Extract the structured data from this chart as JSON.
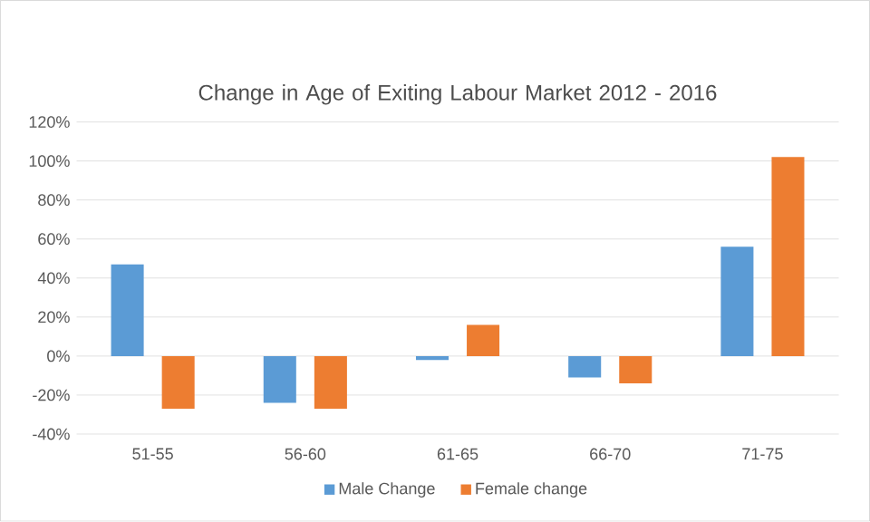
{
  "chart_data": {
    "type": "bar",
    "title": "Change in Age of Exiting Labour Market 2012 - 2016",
    "categories": [
      "51-55",
      "56-60",
      "61-65",
      "66-70",
      "71-75"
    ],
    "series": [
      {
        "name": "Male Change",
        "color": "#5b9bd5",
        "values": [
          47,
          -24,
          -2,
          -11,
          56
        ]
      },
      {
        "name": "Female change",
        "color": "#ed7d31",
        "values": [
          -27,
          -27,
          16,
          -14,
          102
        ]
      }
    ],
    "ylim": [
      -40,
      120
    ],
    "yticks": [
      {
        "value": -40,
        "label": "-40%"
      },
      {
        "value": -20,
        "label": "-20%"
      },
      {
        "value": 0,
        "label": "0%"
      },
      {
        "value": 20,
        "label": "20%"
      },
      {
        "value": 40,
        "label": "40%"
      },
      {
        "value": 60,
        "label": "60%"
      },
      {
        "value": 80,
        "label": "80%"
      },
      {
        "value": 100,
        "label": "100%"
      },
      {
        "value": 120,
        "label": "120%"
      }
    ],
    "grid": "y",
    "legend": "bottom"
  }
}
